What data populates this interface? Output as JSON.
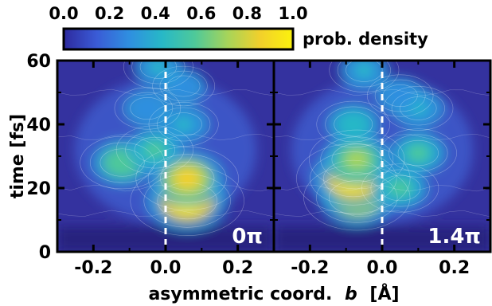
{
  "chart_data": [
    {
      "type": "heatmap",
      "panel_label": "0π",
      "xlabel": "asymmetric coord. b [Å]",
      "ylabel": "time [fs]",
      "xlim": [
        -0.3,
        0.3
      ],
      "ylim": [
        0,
        60
      ],
      "x_ticks": [
        -0.2,
        0.0,
        0.2
      ],
      "x_tick_labels": [
        "-0.2",
        "0.0",
        "0.2"
      ],
      "y_ticks": [
        0,
        20,
        40,
        60
      ],
      "y_tick_labels": [
        "0",
        "20",
        "40",
        "60"
      ],
      "reference_line_x": 0.0,
      "hotspots": [
        {
          "x": 0.06,
          "t": 16,
          "value": 1.0
        },
        {
          "x": 0.06,
          "t": 23,
          "value": 0.85
        },
        {
          "x": -0.12,
          "t": 28,
          "value": 0.6
        },
        {
          "x": -0.03,
          "t": 32,
          "value": 0.5
        },
        {
          "x": 0.05,
          "t": 40,
          "value": 0.4
        },
        {
          "x": -0.05,
          "t": 45,
          "value": 0.35
        },
        {
          "x": 0.05,
          "t": 52,
          "value": 0.3
        },
        {
          "x": -0.02,
          "t": 58,
          "value": 0.4
        }
      ]
    },
    {
      "type": "heatmap",
      "panel_label": "1.4π",
      "xlabel": "asymmetric coord. b [Å]",
      "ylabel": "time [fs]",
      "xlim": [
        -0.3,
        0.3
      ],
      "ylim": [
        0,
        60
      ],
      "x_ticks": [
        -0.2,
        0.0,
        0.2
      ],
      "x_tick_labels": [
        "-0.2",
        "0.0",
        "0.2"
      ],
      "y_ticks": [
        0,
        20,
        40,
        60
      ],
      "y_tick_labels": [
        "0",
        "20",
        "40",
        "60"
      ],
      "reference_line_x": 0.0,
      "hotspots": [
        {
          "x": -0.07,
          "t": 17,
          "value": 0.9
        },
        {
          "x": -0.08,
          "t": 23,
          "value": 1.0
        },
        {
          "x": -0.07,
          "t": 29,
          "value": 0.75
        },
        {
          "x": 0.05,
          "t": 20,
          "value": 0.5
        },
        {
          "x": 0.1,
          "t": 31,
          "value": 0.5
        },
        {
          "x": -0.08,
          "t": 40,
          "value": 0.45
        },
        {
          "x": 0.1,
          "t": 45,
          "value": 0.4
        },
        {
          "x": 0.05,
          "t": 49,
          "value": 0.35
        },
        {
          "x": -0.05,
          "t": 57,
          "value": 0.4
        }
      ]
    }
  ],
  "colorbar": {
    "label": "prob. density",
    "ticks": [
      "0.0",
      "0.2",
      "0.4",
      "0.6",
      "0.8",
      "1.0"
    ],
    "range": [
      0,
      1
    ],
    "colors": [
      "#2d2a9e",
      "#3a5bd6",
      "#2f8fe0",
      "#27b8c7",
      "#4ec99a",
      "#a6d45a",
      "#f2d02b",
      "#fbf20d"
    ]
  },
  "axis": {
    "xlabel_prefix": "asymmetric coord.",
    "xlabel_var": "b",
    "xlabel_unit": "[Å]",
    "ylabel": "time [fs]"
  }
}
